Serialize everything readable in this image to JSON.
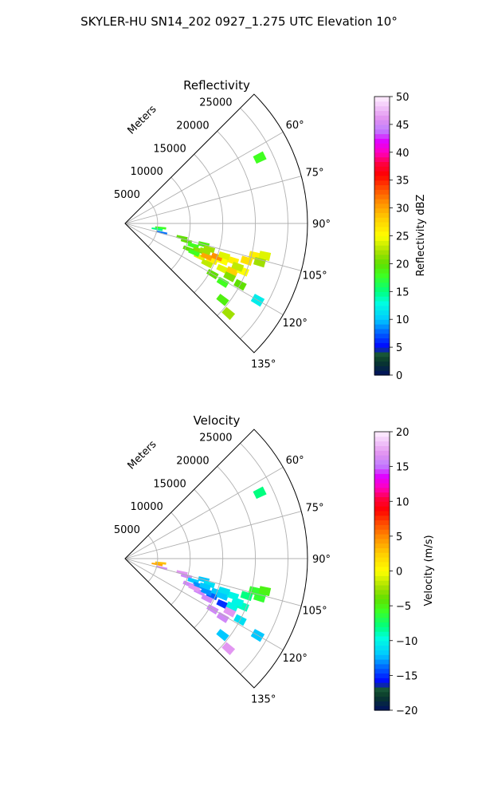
{
  "figure": {
    "title": "SKYLER-HU  SN14_202  0927_1.275 UTC Elevation 10°"
  },
  "chart_data": [
    {
      "type": "heatmap",
      "projection": "polar-sector",
      "title": "Reflectivity",
      "range_label": "Meters",
      "range_ticks": [
        5000,
        10000,
        15000,
        20000,
        25000
      ],
      "range_tick_labels": [
        "5000",
        "10000",
        "15000",
        "20000",
        "25000"
      ],
      "range_lim": [
        0,
        28000
      ],
      "azimuth_lim_deg": [
        45,
        135
      ],
      "azimuth_ticks_deg": [
        60,
        75,
        90,
        105,
        120,
        135
      ],
      "azimuth_tick_labels": [
        "60°",
        "75°",
        "90°",
        "105°",
        "120°",
        "135°"
      ],
      "grid": true,
      "colorbar": {
        "label": "Reflectivity dBZ",
        "vmin": 0,
        "vmax": 50,
        "ticks": [
          0,
          5,
          10,
          15,
          20,
          25,
          30,
          35,
          40,
          45,
          50
        ],
        "tick_labels": [
          "0",
          "5",
          "10",
          "15",
          "20",
          "25",
          "30",
          "35",
          "40",
          "45",
          "50"
        ],
        "stops": [
          [
            0,
            "#001060"
          ],
          [
            0.05,
            "#0a3a2a"
          ],
          [
            0.08,
            "#1a5a3a"
          ],
          [
            0.1,
            "#0000ff"
          ],
          [
            0.16,
            "#0070ff"
          ],
          [
            0.2,
            "#00c8ff"
          ],
          [
            0.26,
            "#00ffe0"
          ],
          [
            0.3,
            "#00ff80"
          ],
          [
            0.36,
            "#40ff20"
          ],
          [
            0.4,
            "#60e000"
          ],
          [
            0.44,
            "#a0e000"
          ],
          [
            0.5,
            "#ffff00"
          ],
          [
            0.56,
            "#ffd000"
          ],
          [
            0.62,
            "#ff9000"
          ],
          [
            0.68,
            "#ff4000"
          ],
          [
            0.72,
            "#ff0000"
          ],
          [
            0.76,
            "#ff0040"
          ],
          [
            0.8,
            "#ff00c0"
          ],
          [
            0.84,
            "#e000ff"
          ],
          [
            0.88,
            "#c080ff"
          ],
          [
            0.92,
            "#e090f0"
          ],
          [
            0.96,
            "#f0c0f8"
          ],
          [
            1,
            "#fff0ff"
          ]
        ]
      },
      "cells": [
        {
          "az": 97,
          "r": 5500,
          "v": 18
        },
        {
          "az": 100,
          "r": 5000,
          "v": 15
        },
        {
          "az": 104,
          "r": 5800,
          "v": 8
        },
        {
          "az": 104,
          "r": 9000,
          "v": 20
        },
        {
          "az": 106,
          "r": 9800,
          "v": 20
        },
        {
          "az": 108,
          "r": 11000,
          "v": 18
        },
        {
          "az": 105,
          "r": 12500,
          "v": 19
        },
        {
          "az": 107,
          "r": 13500,
          "v": 22
        },
        {
          "az": 110,
          "r": 12000,
          "v": 21
        },
        {
          "az": 112,
          "r": 10500,
          "v": 20
        },
        {
          "az": 114,
          "r": 12500,
          "v": 24
        },
        {
          "az": 113,
          "r": 14500,
          "v": 26
        },
        {
          "az": 111,
          "r": 16000,
          "v": 25
        },
        {
          "az": 109,
          "r": 17500,
          "v": 26
        },
        {
          "az": 107,
          "r": 19500,
          "v": 27
        },
        {
          "az": 104,
          "r": 20500,
          "v": 26
        },
        {
          "az": 103,
          "r": 22000,
          "v": 24
        },
        {
          "az": 106,
          "r": 21500,
          "v": 22
        },
        {
          "az": 116,
          "r": 14000,
          "v": 23
        },
        {
          "az": 115,
          "r": 16500,
          "v": 24
        },
        {
          "az": 114,
          "r": 18000,
          "v": 28
        },
        {
          "az": 112,
          "r": 19500,
          "v": 25
        },
        {
          "az": 117,
          "r": 18000,
          "v": 21
        },
        {
          "az": 120,
          "r": 15500,
          "v": 20
        },
        {
          "az": 121,
          "r": 17500,
          "v": 18
        },
        {
          "az": 118,
          "r": 20000,
          "v": 20
        },
        {
          "az": 128,
          "r": 19000,
          "v": 19
        },
        {
          "az": 131,
          "r": 21000,
          "v": 22
        },
        {
          "az": 120,
          "r": 23500,
          "v": 12
        },
        {
          "az": 64,
          "r": 23000,
          "v": 18
        },
        {
          "az": 112,
          "r": 13500,
          "v": 30
        },
        {
          "az": 110,
          "r": 15000,
          "v": 31
        },
        {
          "az": 113,
          "r": 11500,
          "v": 18
        },
        {
          "az": 109,
          "r": 13000,
          "v": 22
        },
        {
          "az": 108,
          "r": 16000,
          "v": 24
        },
        {
          "az": 111,
          "r": 18500,
          "v": 23
        }
      ]
    },
    {
      "type": "heatmap",
      "projection": "polar-sector",
      "title": "Velocity",
      "range_label": "Meters",
      "range_ticks": [
        5000,
        10000,
        15000,
        20000,
        25000
      ],
      "range_tick_labels": [
        "5000",
        "10000",
        "15000",
        "20000",
        "25000"
      ],
      "range_lim": [
        0,
        28000
      ],
      "azimuth_lim_deg": [
        45,
        135
      ],
      "azimuth_ticks_deg": [
        60,
        75,
        90,
        105,
        120,
        135
      ],
      "azimuth_tick_labels": [
        "60°",
        "75°",
        "90°",
        "105°",
        "120°",
        "135°"
      ],
      "grid": true,
      "colorbar": {
        "label": "Velocity (m/s)",
        "vmin": -20,
        "vmax": 20,
        "ticks": [
          -20,
          -15,
          -10,
          -5,
          0,
          5,
          10,
          15,
          20
        ],
        "tick_labels": [
          "−20",
          "−15",
          "−10",
          "−5",
          "0",
          "5",
          "10",
          "15",
          "20"
        ],
        "stops": [
          [
            0,
            "#001060"
          ],
          [
            0.05,
            "#0a3a2a"
          ],
          [
            0.08,
            "#1a5a3a"
          ],
          [
            0.1,
            "#0000ff"
          ],
          [
            0.16,
            "#0070ff"
          ],
          [
            0.2,
            "#00c8ff"
          ],
          [
            0.26,
            "#00ffe0"
          ],
          [
            0.3,
            "#00ff80"
          ],
          [
            0.36,
            "#40ff20"
          ],
          [
            0.4,
            "#60e000"
          ],
          [
            0.44,
            "#a0e000"
          ],
          [
            0.5,
            "#ffff00"
          ],
          [
            0.56,
            "#ffd000"
          ],
          [
            0.62,
            "#ff9000"
          ],
          [
            0.68,
            "#ff4000"
          ],
          [
            0.72,
            "#ff0000"
          ],
          [
            0.76,
            "#ff0040"
          ],
          [
            0.8,
            "#ff00c0"
          ],
          [
            0.84,
            "#e000ff"
          ],
          [
            0.88,
            "#c080ff"
          ],
          [
            0.92,
            "#e090f0"
          ],
          [
            0.96,
            "#f0c0f8"
          ],
          [
            1,
            "#fff0ff"
          ]
        ]
      },
      "cells": [
        {
          "az": 97,
          "r": 5500,
          "v": 3
        },
        {
          "az": 100,
          "r": 5000,
          "v": 4
        },
        {
          "az": 104,
          "r": 5800,
          "v": 16
        },
        {
          "az": 104,
          "r": 9000,
          "v": 17
        },
        {
          "az": 106,
          "r": 9800,
          "v": 16
        },
        {
          "az": 108,
          "r": 11000,
          "v": -12
        },
        {
          "az": 105,
          "r": 12500,
          "v": -12
        },
        {
          "az": 107,
          "r": 13500,
          "v": -11
        },
        {
          "az": 110,
          "r": 12000,
          "v": -13
        },
        {
          "az": 112,
          "r": 10500,
          "v": 16
        },
        {
          "az": 114,
          "r": 12500,
          "v": 16
        },
        {
          "az": 113,
          "r": 14500,
          "v": -14
        },
        {
          "az": 111,
          "r": 16000,
          "v": -12
        },
        {
          "az": 109,
          "r": 17500,
          "v": -10
        },
        {
          "az": 107,
          "r": 19500,
          "v": -8
        },
        {
          "az": 104,
          "r": 20500,
          "v": -6
        },
        {
          "az": 103,
          "r": 22000,
          "v": -5
        },
        {
          "az": 106,
          "r": 21500,
          "v": -6
        },
        {
          "az": 116,
          "r": 14000,
          "v": 16
        },
        {
          "az": 115,
          "r": 16500,
          "v": -15
        },
        {
          "az": 114,
          "r": 18000,
          "v": -10
        },
        {
          "az": 112,
          "r": 19500,
          "v": -9
        },
        {
          "az": 117,
          "r": 18000,
          "v": 17
        },
        {
          "az": 120,
          "r": 15500,
          "v": 16
        },
        {
          "az": 121,
          "r": 17500,
          "v": 16
        },
        {
          "az": 118,
          "r": 20000,
          "v": -11
        },
        {
          "az": 128,
          "r": 19000,
          "v": -12
        },
        {
          "az": 131,
          "r": 21000,
          "v": 17
        },
        {
          "az": 120,
          "r": 23500,
          "v": -12
        },
        {
          "az": 64,
          "r": 23000,
          "v": -8
        },
        {
          "az": 112,
          "r": 13500,
          "v": -13
        },
        {
          "az": 110,
          "r": 15000,
          "v": -12
        },
        {
          "az": 113,
          "r": 11500,
          "v": 17
        },
        {
          "az": 109,
          "r": 13000,
          "v": -12
        },
        {
          "az": 108,
          "r": 16000,
          "v": -11
        },
        {
          "az": 111,
          "r": 18500,
          "v": -10
        }
      ]
    }
  ]
}
